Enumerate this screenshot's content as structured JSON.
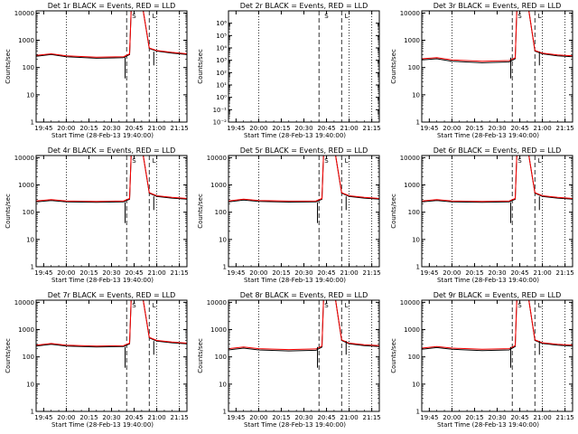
{
  "chart_data": [
    {
      "type": "line",
      "title": "Det 1r BLACK = Events, RED = LLD",
      "xlabel": "Start Time (28-Feb-13 19:40:00)",
      "ylabel": "Counts/sec",
      "yscale": "log",
      "ylim": [
        1,
        12000
      ],
      "xlim_minutes": [
        0,
        100
      ],
      "x_tick_labels": [
        "19:45",
        "20:00",
        "20:15",
        "20:30",
        "20:45",
        "21:00",
        "21:15"
      ],
      "y_tick_labels": [
        "1",
        "10",
        "100",
        "1000",
        "10000"
      ],
      "series": [
        {
          "color": "#000000",
          "points": [
            [
              0,
              260
            ],
            [
              10,
              300
            ],
            [
              20,
              250
            ],
            [
              40,
              220
            ],
            [
              58,
              230
            ],
            [
              62,
              300
            ],
            [
              63,
              12000
            ],
            [
              71,
              12000
            ],
            [
              75,
              500
            ],
            [
              80,
              400
            ],
            [
              90,
              340
            ],
            [
              100,
              300
            ]
          ]
        },
        {
          "color": "#ff0000",
          "points": [
            [
              0,
              280
            ],
            [
              10,
              320
            ],
            [
              20,
              270
            ],
            [
              40,
              240
            ],
            [
              58,
              250
            ],
            [
              62,
              320
            ],
            [
              63,
              12000
            ],
            [
              71,
              12000
            ],
            [
              75,
              520
            ],
            [
              80,
              420
            ],
            [
              90,
              360
            ],
            [
              100,
              320
            ]
          ]
        }
      ],
      "annotations": [
        "S",
        "L"
      ]
    },
    {
      "type": "line",
      "title": "Det 2r BLACK = Events, RED = LLD",
      "xlabel": "Start Time (28-Feb-13 19:40:00)",
      "ylabel": "Counts/sec",
      "yscale": "log",
      "ylim": [
        0.001,
        1000000
      ],
      "xlim_minutes": [
        0,
        100
      ],
      "x_tick_labels": [
        "19:45",
        "20:00",
        "20:15",
        "20:30",
        "20:45",
        "21:00",
        "21:15"
      ],
      "y_tick_labels": [
        "10⁻²",
        "10⁻¹",
        "10⁰",
        "10¹",
        "10²",
        "10³",
        "10⁴",
        "10⁵",
        "10⁶"
      ],
      "series": [],
      "annotations": [
        "S",
        "L"
      ]
    },
    {
      "type": "line",
      "title": "Det 3r BLACK = Events, RED = LLD",
      "xlabel": "Start Time (28-Feb-13 19:40:00)",
      "ylabel": "Counts/sec",
      "yscale": "log",
      "ylim": [
        1,
        12000
      ],
      "xlim_minutes": [
        0,
        100
      ],
      "x_tick_labels": [
        "19:45",
        "20:00",
        "20:15",
        "20:30",
        "20:45",
        "21:00",
        "21:15"
      ],
      "y_tick_labels": [
        "1",
        "10",
        "100",
        "1000",
        "10000"
      ],
      "series": [
        {
          "color": "#000000",
          "points": [
            [
              0,
              190
            ],
            [
              10,
              210
            ],
            [
              20,
              170
            ],
            [
              40,
              150
            ],
            [
              58,
              160
            ],
            [
              62,
              210
            ],
            [
              63,
              12000
            ],
            [
              71,
              12000
            ],
            [
              75,
              400
            ],
            [
              80,
              320
            ],
            [
              90,
              270
            ],
            [
              100,
              250
            ]
          ]
        },
        {
          "color": "#ff0000",
          "points": [
            [
              0,
              210
            ],
            [
              10,
              230
            ],
            [
              20,
              190
            ],
            [
              40,
              170
            ],
            [
              58,
              180
            ],
            [
              62,
              230
            ],
            [
              63,
              12000
            ],
            [
              71,
              12000
            ],
            [
              75,
              420
            ],
            [
              80,
              340
            ],
            [
              90,
              290
            ],
            [
              100,
              270
            ]
          ]
        }
      ],
      "annotations": [
        "S",
        "L"
      ]
    },
    {
      "type": "line",
      "title": "Det 4r BLACK = Events, RED = LLD",
      "xlabel": "Start Time (28-Feb-13 19:40:00)",
      "ylabel": "Counts/sec",
      "yscale": "log",
      "ylim": [
        1,
        12000
      ],
      "xlim_minutes": [
        0,
        100
      ],
      "x_tick_labels": [
        "19:45",
        "20:00",
        "20:15",
        "20:30",
        "20:45",
        "21:00",
        "21:15"
      ],
      "y_tick_labels": [
        "1",
        "10",
        "100",
        "1000",
        "10000"
      ],
      "series": [
        {
          "color": "#000000",
          "points": [
            [
              0,
              240
            ],
            [
              10,
              270
            ],
            [
              20,
              240
            ],
            [
              40,
              230
            ],
            [
              58,
              240
            ],
            [
              62,
              300
            ],
            [
              63,
              12000
            ],
            [
              71,
              12000
            ],
            [
              75,
              500
            ],
            [
              80,
              380
            ],
            [
              90,
              330
            ],
            [
              100,
              300
            ]
          ]
        },
        {
          "color": "#ff0000",
          "points": [
            [
              0,
              260
            ],
            [
              10,
              290
            ],
            [
              20,
              260
            ],
            [
              40,
              250
            ],
            [
              58,
              260
            ],
            [
              62,
              320
            ],
            [
              63,
              12000
            ],
            [
              71,
              12000
            ],
            [
              75,
              520
            ],
            [
              80,
              400
            ],
            [
              90,
              350
            ],
            [
              100,
              320
            ]
          ]
        }
      ],
      "annotations": [
        "S",
        "L"
      ]
    },
    {
      "type": "line",
      "title": "Det 5r BLACK = Events, RED = LLD",
      "xlabel": "Start Time (28-Feb-13 19:40:00)",
      "ylabel": "Counts/sec",
      "yscale": "log",
      "ylim": [
        1,
        12000
      ],
      "xlim_minutes": [
        0,
        100
      ],
      "x_tick_labels": [
        "19:45",
        "20:00",
        "20:15",
        "20:30",
        "20:45",
        "21:00",
        "21:15"
      ],
      "y_tick_labels": [
        "1",
        "10",
        "100",
        "1000",
        "10000"
      ],
      "series": [
        {
          "color": "#000000",
          "points": [
            [
              0,
              240
            ],
            [
              10,
              280
            ],
            [
              20,
              250
            ],
            [
              40,
              235
            ],
            [
              58,
              240
            ],
            [
              62,
              300
            ],
            [
              63,
              12000
            ],
            [
              71,
              12000
            ],
            [
              75,
              500
            ],
            [
              80,
              380
            ],
            [
              90,
              330
            ],
            [
              100,
              300
            ]
          ]
        },
        {
          "color": "#ff0000",
          "points": [
            [
              0,
              260
            ],
            [
              10,
              300
            ],
            [
              20,
              270
            ],
            [
              40,
              255
            ],
            [
              58,
              260
            ],
            [
              62,
              320
            ],
            [
              63,
              12000
            ],
            [
              71,
              12000
            ],
            [
              75,
              520
            ],
            [
              80,
              400
            ],
            [
              90,
              350
            ],
            [
              100,
              320
            ]
          ]
        }
      ],
      "annotations": [
        "S",
        "L"
      ]
    },
    {
      "type": "line",
      "title": "Det 6r BLACK = Events, RED = LLD",
      "xlabel": "Start Time (28-Feb-13 19:40:00)",
      "ylabel": "Counts/sec",
      "yscale": "log",
      "ylim": [
        1,
        12000
      ],
      "xlim_minutes": [
        0,
        100
      ],
      "x_tick_labels": [
        "19:45",
        "20:00",
        "20:15",
        "20:30",
        "20:45",
        "21:00",
        "21:15"
      ],
      "y_tick_labels": [
        "1",
        "10",
        "100",
        "1000",
        "10000"
      ],
      "series": [
        {
          "color": "#000000",
          "points": [
            [
              0,
              240
            ],
            [
              10,
              270
            ],
            [
              20,
              240
            ],
            [
              40,
              230
            ],
            [
              58,
              240
            ],
            [
              62,
              300
            ],
            [
              63,
              12000
            ],
            [
              71,
              12000
            ],
            [
              75,
              500
            ],
            [
              80,
              380
            ],
            [
              90,
              330
            ],
            [
              100,
              300
            ]
          ]
        },
        {
          "color": "#ff0000",
          "points": [
            [
              0,
              260
            ],
            [
              10,
              290
            ],
            [
              20,
              260
            ],
            [
              40,
              250
            ],
            [
              58,
              260
            ],
            [
              62,
              320
            ],
            [
              63,
              12000
            ],
            [
              71,
              12000
            ],
            [
              75,
              520
            ],
            [
              80,
              400
            ],
            [
              90,
              350
            ],
            [
              100,
              320
            ]
          ]
        }
      ],
      "annotations": [
        "S",
        "L"
      ]
    },
    {
      "type": "line",
      "title": "Det 7r BLACK = Events, RED = LLD",
      "xlabel": "Start Time (28-Feb-13 19:40:00)",
      "ylabel": "Counts/sec",
      "yscale": "log",
      "ylim": [
        1,
        12000
      ],
      "xlim_minutes": [
        0,
        100
      ],
      "x_tick_labels": [
        "19:45",
        "20:00",
        "20:15",
        "20:30",
        "20:45",
        "21:00",
        "21:15"
      ],
      "y_tick_labels": [
        "1",
        "10",
        "100",
        "1000",
        "10000"
      ],
      "series": [
        {
          "color": "#000000",
          "points": [
            [
              0,
              250
            ],
            [
              10,
              290
            ],
            [
              20,
              250
            ],
            [
              40,
              230
            ],
            [
              58,
              240
            ],
            [
              62,
              300
            ],
            [
              63,
              12000
            ],
            [
              71,
              12000
            ],
            [
              75,
              500
            ],
            [
              80,
              380
            ],
            [
              90,
              330
            ],
            [
              100,
              300
            ]
          ]
        },
        {
          "color": "#ff0000",
          "points": [
            [
              0,
              270
            ],
            [
              10,
              310
            ],
            [
              20,
              270
            ],
            [
              40,
              250
            ],
            [
              58,
              260
            ],
            [
              62,
              320
            ],
            [
              63,
              12000
            ],
            [
              71,
              12000
            ],
            [
              75,
              520
            ],
            [
              80,
              400
            ],
            [
              90,
              350
            ],
            [
              100,
              320
            ]
          ]
        }
      ],
      "annotations": [
        "S",
        "L"
      ]
    },
    {
      "type": "line",
      "title": "Det 8r BLACK = Events, RED = LLD",
      "xlabel": "Start Time (28-Feb-13 19:40:00)",
      "ylabel": "Counts/sec",
      "yscale": "log",
      "ylim": [
        1,
        12000
      ],
      "xlim_minutes": [
        0,
        100
      ],
      "x_tick_labels": [
        "19:45",
        "20:00",
        "20:15",
        "20:30",
        "20:45",
        "21:00",
        "21:15"
      ],
      "y_tick_labels": [
        "1",
        "10",
        "100",
        "1000",
        "10000"
      ],
      "series": [
        {
          "color": "#000000",
          "points": [
            [
              0,
              180
            ],
            [
              10,
              210
            ],
            [
              20,
              180
            ],
            [
              40,
              165
            ],
            [
              58,
              175
            ],
            [
              62,
              230
            ],
            [
              63,
              12000
            ],
            [
              71,
              12000
            ],
            [
              75,
              400
            ],
            [
              80,
              300
            ],
            [
              90,
              260
            ],
            [
              100,
              240
            ]
          ]
        },
        {
          "color": "#ff0000",
          "points": [
            [
              0,
              200
            ],
            [
              10,
              230
            ],
            [
              20,
              200
            ],
            [
              40,
              185
            ],
            [
              58,
              195
            ],
            [
              62,
              250
            ],
            [
              63,
              12000
            ],
            [
              71,
              12000
            ],
            [
              75,
              420
            ],
            [
              80,
              320
            ],
            [
              90,
              280
            ],
            [
              100,
              260
            ]
          ]
        }
      ],
      "annotations": [
        "S",
        "L"
      ]
    },
    {
      "type": "line",
      "title": "Det 9r BLACK = Events, RED = LLD",
      "xlabel": "Start Time (28-Feb-13 19:40:00)",
      "ylabel": "Counts/sec",
      "yscale": "log",
      "ylim": [
        1,
        12000
      ],
      "xlim_minutes": [
        0,
        100
      ],
      "x_tick_labels": [
        "19:45",
        "20:00",
        "20:15",
        "20:30",
        "20:45",
        "21:00",
        "21:15"
      ],
      "y_tick_labels": [
        "1",
        "10",
        "100",
        "1000",
        "10000"
      ],
      "series": [
        {
          "color": "#000000",
          "points": [
            [
              0,
              190
            ],
            [
              10,
              220
            ],
            [
              20,
              190
            ],
            [
              40,
              170
            ],
            [
              58,
              180
            ],
            [
              62,
              240
            ],
            [
              63,
              12000
            ],
            [
              71,
              12000
            ],
            [
              75,
              400
            ],
            [
              80,
              310
            ],
            [
              90,
              270
            ],
            [
              100,
              250
            ]
          ]
        },
        {
          "color": "#ff0000",
          "points": [
            [
              0,
              210
            ],
            [
              10,
              240
            ],
            [
              20,
              210
            ],
            [
              40,
              190
            ],
            [
              58,
              200
            ],
            [
              62,
              260
            ],
            [
              63,
              12000
            ],
            [
              71,
              12000
            ],
            [
              75,
              420
            ],
            [
              80,
              330
            ],
            [
              90,
              290
            ],
            [
              100,
              270
            ]
          ]
        }
      ],
      "annotations": [
        "S",
        "L"
      ]
    }
  ]
}
